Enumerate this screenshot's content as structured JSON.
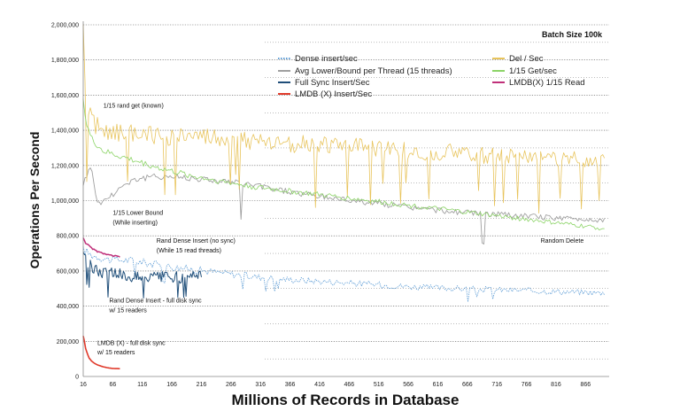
{
  "chart_data": {
    "type": "line",
    "title": "Batch Size 100k",
    "xlabel": "Millions of Records in Database",
    "ylabel": "Operations Per Second",
    "xlim": [
      16,
      906
    ],
    "ylim": [
      0,
      2000000
    ],
    "x_ticks": [
      16,
      66,
      116,
      166,
      216,
      266,
      316,
      366,
      416,
      466,
      516,
      566,
      616,
      666,
      716,
      766,
      816,
      866
    ],
    "y_ticks": [
      0,
      200000,
      400000,
      600000,
      800000,
      1000000,
      1200000,
      1400000,
      1600000,
      1800000,
      2000000
    ],
    "y_tick_labels": [
      "0",
      "200,000",
      "400,000",
      "600,000",
      "800,000",
      "1,000,000",
      "1,200,000",
      "1,400,000",
      "1,600,000",
      "1,800,000",
      "2,000,000"
    ],
    "grid": "horizontal dotted",
    "legend_position": "top-right",
    "series": [
      {
        "name": "Dense insert/sec",
        "color": "#5b9bd5",
        "style": "dotted",
        "x": [
          16,
          30,
          60,
          100,
          150,
          200,
          250,
          300,
          350,
          400,
          450,
          500,
          550,
          600,
          650,
          700,
          750,
          800,
          850,
          900
        ],
        "values": [
          720000,
          690000,
          665000,
          660000,
          630000,
          610000,
          590000,
          570000,
          555000,
          545000,
          535000,
          525000,
          515000,
          505000,
          500000,
          495000,
          490000,
          485000,
          480000,
          475000
        ]
      },
      {
        "name": "Avg Lower/Bound per Thread (15 threads)",
        "color": "#a0a0a0",
        "style": "solid",
        "x": [
          16,
          30,
          40,
          60,
          80,
          100,
          150,
          200,
          250,
          300,
          350,
          400,
          450,
          500,
          550,
          600,
          650,
          700,
          750,
          800,
          850,
          900
        ],
        "values": [
          1100000,
          1200000,
          980000,
          1020000,
          1080000,
          1120000,
          1140000,
          1130000,
          1110000,
          1090000,
          1060000,
          1030000,
          1010000,
          990000,
          970000,
          950000,
          935000,
          925000,
          915000,
          905000,
          895000,
          890000
        ]
      },
      {
        "name": "Full Sync Insert/Sec",
        "color": "#1f4e79",
        "style": "solid",
        "x": [
          16,
          25,
          40,
          60,
          80,
          100,
          130,
          160,
          190,
          216
        ],
        "values": [
          720000,
          640000,
          600000,
          590000,
          580000,
          570000,
          560000,
          565000,
          560000,
          570000
        ]
      },
      {
        "name": "LMDB (X) Insert/Sec",
        "color": "#e03a2b",
        "style": "solid",
        "x": [
          16,
          18,
          20,
          23,
          26,
          30,
          35,
          40,
          45,
          50,
          55,
          60,
          65,
          70,
          78
        ],
        "values": [
          230000,
          200000,
          160000,
          130000,
          105000,
          88000,
          75000,
          66000,
          60000,
          55000,
          51000,
          48000,
          46000,
          45000,
          44000
        ]
      },
      {
        "name": "Del / Sec",
        "color": "#e8c45c",
        "style": "solid",
        "x": [
          16,
          20,
          30,
          50,
          100,
          150,
          200,
          250,
          300,
          350,
          400,
          450,
          500,
          550,
          600,
          650,
          700,
          750,
          800,
          850,
          900
        ],
        "values": [
          1950000,
          1550000,
          1450000,
          1400000,
          1380000,
          1370000,
          1360000,
          1350000,
          1340000,
          1330000,
          1320000,
          1310000,
          1300000,
          1290000,
          1280000,
          1270000,
          1260000,
          1250000,
          1245000,
          1240000,
          1230000
        ]
      },
      {
        "name": "1/15 Get/sec",
        "color": "#8cd467",
        "style": "solid",
        "x": [
          16,
          20,
          30,
          50,
          100,
          150,
          200,
          250,
          300,
          350,
          400,
          450,
          500,
          550,
          600,
          650,
          700,
          750,
          800,
          850,
          900
        ],
        "values": [
          1600000,
          1450000,
          1350000,
          1280000,
          1230000,
          1180000,
          1140000,
          1110000,
          1080000,
          1060000,
          1040000,
          1020000,
          1000000,
          980000,
          960000,
          940000,
          920000,
          900000,
          880000,
          860000,
          840000
        ]
      },
      {
        "name": "LMDB(X) 1/15 Read",
        "color": "#c0307a",
        "style": "solid",
        "x": [
          16,
          20,
          30,
          40,
          50,
          60,
          70,
          78
        ],
        "values": [
          790000,
          760000,
          730000,
          710000,
          700000,
          690000,
          685000,
          680000
        ]
      }
    ],
    "annotations": [
      {
        "text": "1/15 rand get (known)",
        "x": 50,
        "y": 1530000
      },
      {
        "text": "1/15 Lower Bound",
        "x": 66,
        "y": 920000
      },
      {
        "text": "(While inserting)",
        "x": 66,
        "y": 865000
      },
      {
        "text": "Rand Dense Insert (no sync)",
        "x": 140,
        "y": 760000
      },
      {
        "text": "(While 15 read threads)",
        "x": 140,
        "y": 705000
      },
      {
        "text": "Rand Dense Insert - full disk sync",
        "x": 60,
        "y": 420000
      },
      {
        "text": "w/ 15 readers",
        "x": 60,
        "y": 365000
      },
      {
        "text": "LMDB (X) - full disk sync",
        "x": 40,
        "y": 180000
      },
      {
        "text": "w/ 15 readers",
        "x": 40,
        "y": 125000
      },
      {
        "text": "Random Delete",
        "x": 790,
        "y": 760000
      }
    ]
  }
}
